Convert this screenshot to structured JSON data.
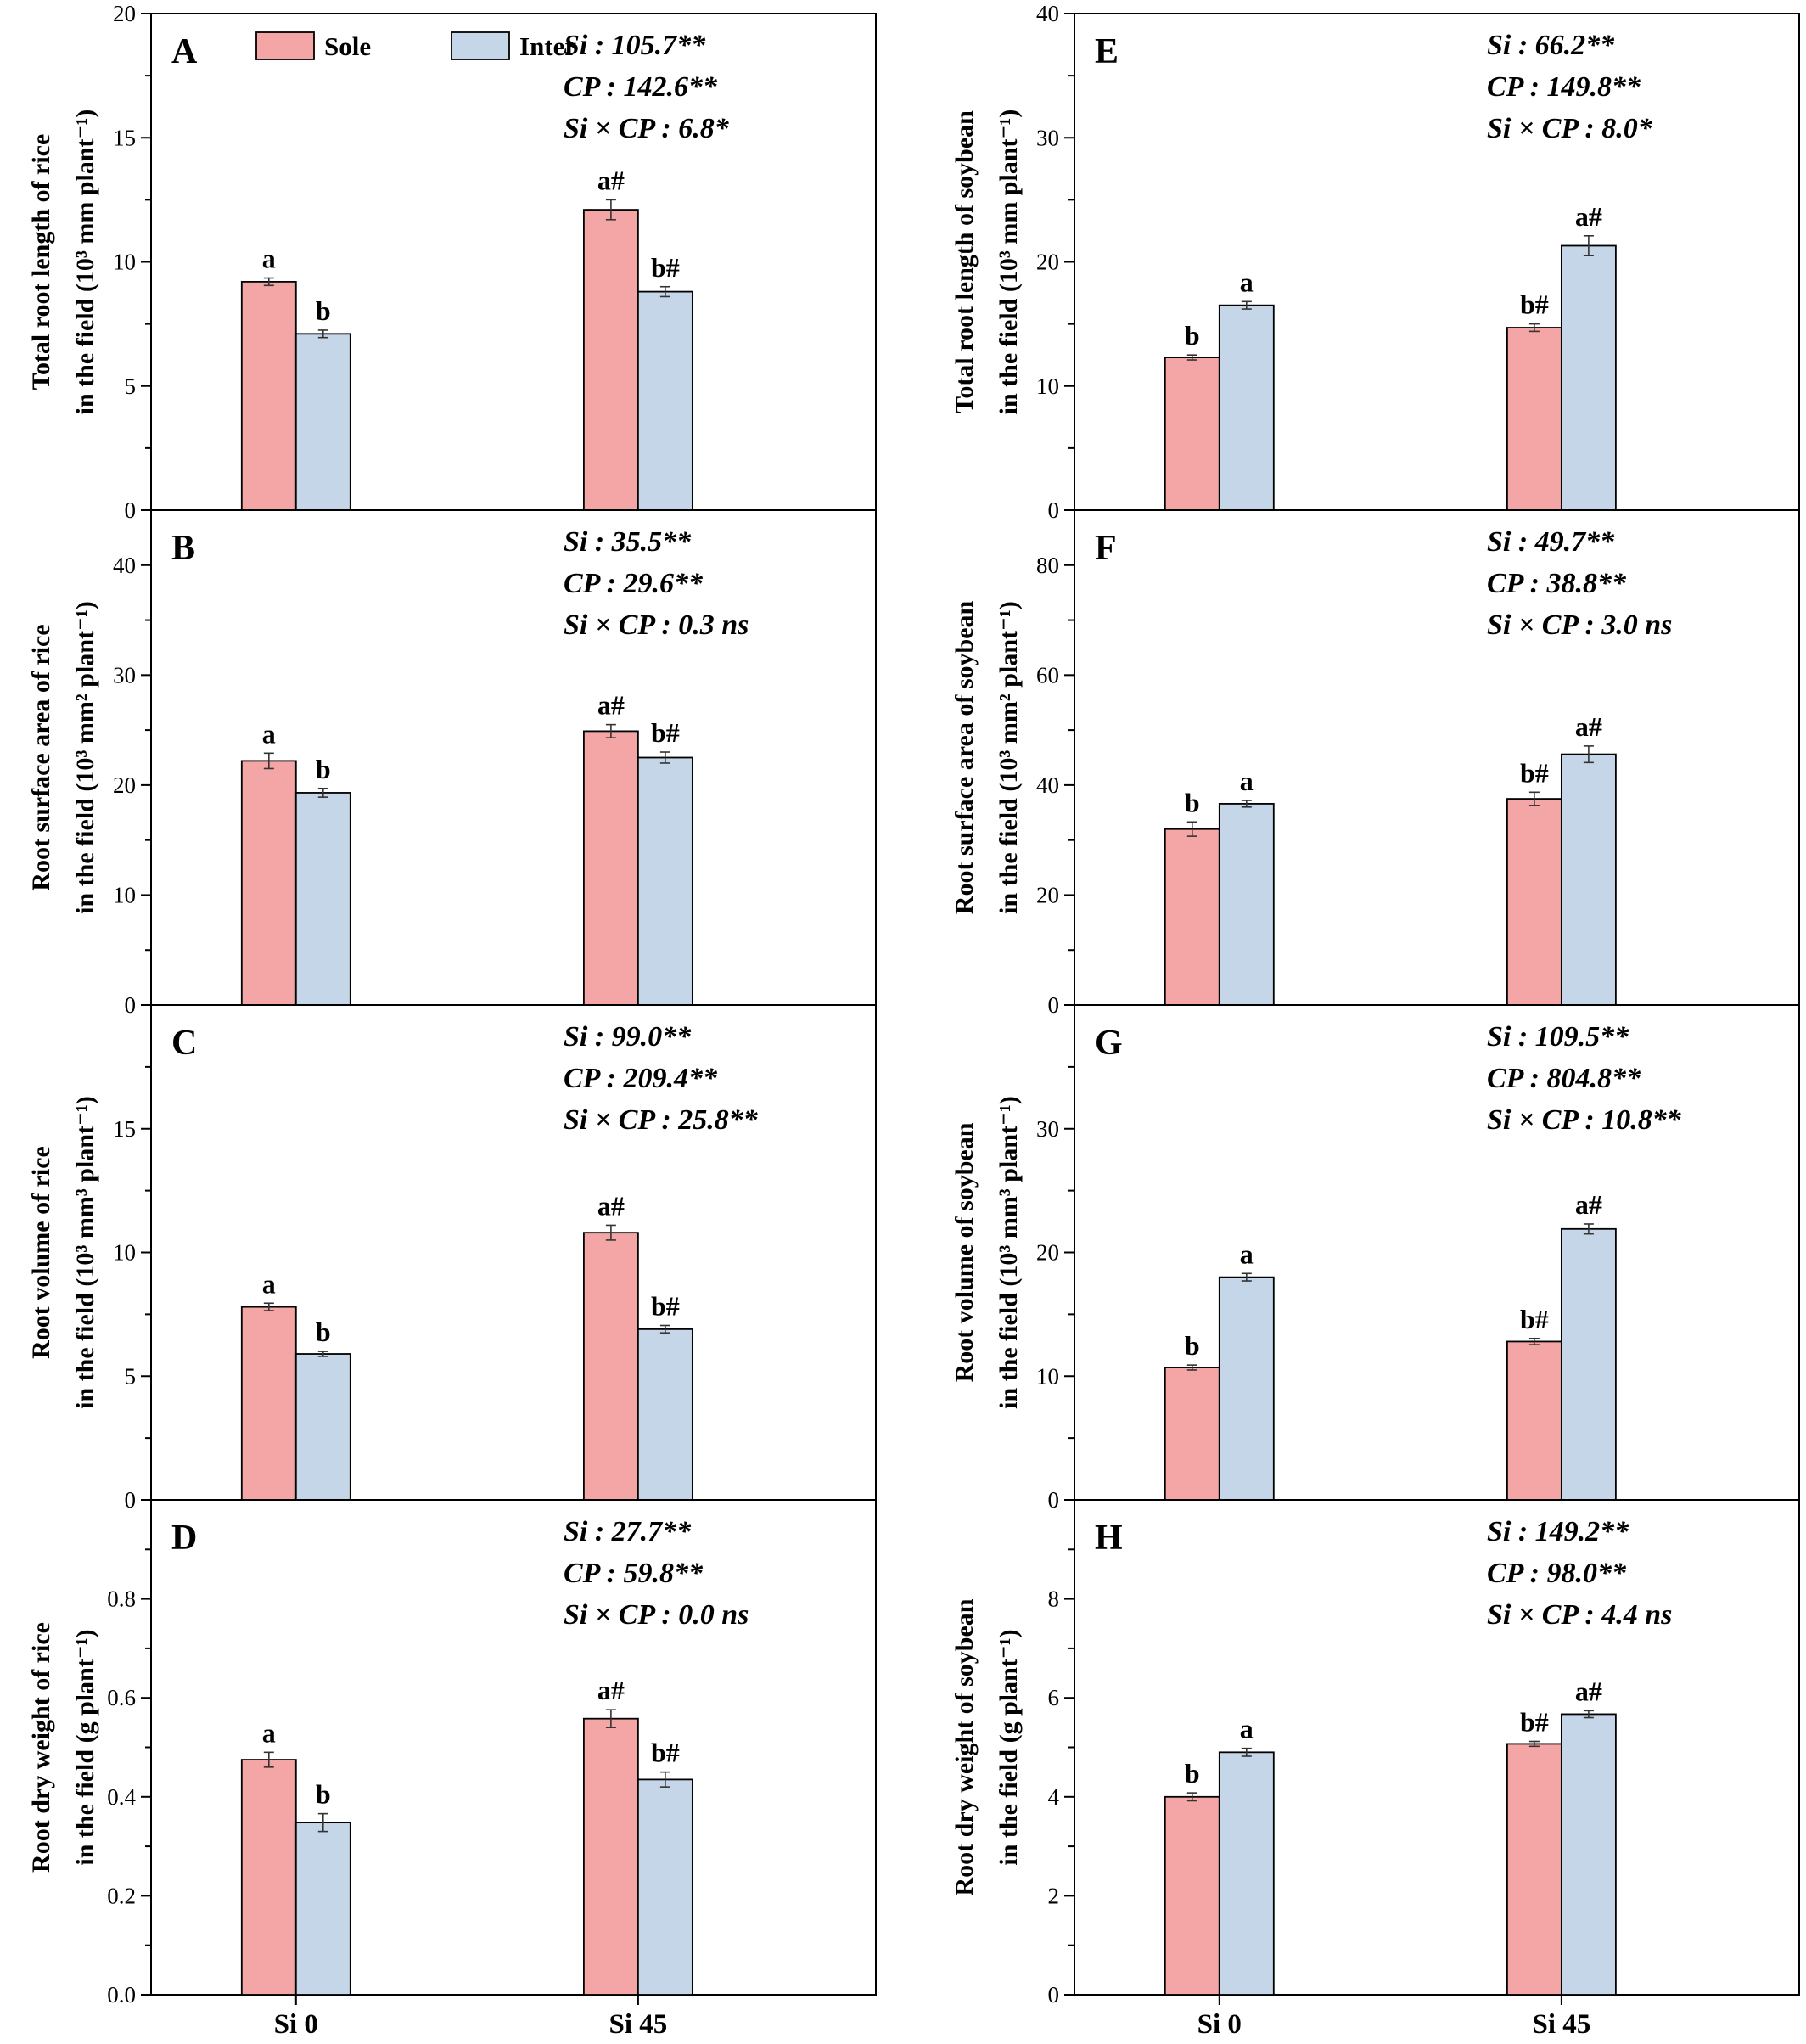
{
  "legend": [
    {
      "name": "Sole",
      "color": "#f4a6a6"
    },
    {
      "name": "Inter",
      "color": "#c5d6e8"
    }
  ],
  "categories": [
    "Si 0",
    "Si 45"
  ],
  "chart_data": [
    {
      "type": "bar",
      "panel": "A",
      "ylabel_lines": [
        "Total root length of rice",
        "in the field (10³ mm plant⁻¹)"
      ],
      "ylim": [
        0,
        20
      ],
      "yticks": [
        0,
        5,
        10,
        15,
        20
      ],
      "categories": [
        "Si 0",
        "Si 45"
      ],
      "series": [
        {
          "name": "Sole",
          "values": [
            9.2,
            12.1
          ],
          "errors": [
            0.15,
            0.4
          ],
          "letters": [
            "a",
            "a#"
          ]
        },
        {
          "name": "Inter",
          "values": [
            7.1,
            8.8
          ],
          "errors": [
            0.15,
            0.2
          ],
          "letters": [
            "b",
            "b#"
          ]
        }
      ],
      "stats": [
        "Si : 105.7**",
        "CP : 142.6**",
        "Si × CP : 6.8*"
      ]
    },
    {
      "type": "bar",
      "panel": "B",
      "ylabel_lines": [
        "Root surface area of rice",
        "in the field (10³ mm² plant⁻¹)"
      ],
      "ylim": [
        0,
        45
      ],
      "yticks": [
        0,
        10,
        20,
        30,
        40
      ],
      "categories": [
        "Si 0",
        "Si 45"
      ],
      "series": [
        {
          "name": "Sole",
          "values": [
            22.2,
            24.9
          ],
          "errors": [
            0.7,
            0.6
          ],
          "letters": [
            "a",
            "a#"
          ]
        },
        {
          "name": "Inter",
          "values": [
            19.3,
            22.5
          ],
          "errors": [
            0.4,
            0.5
          ],
          "letters": [
            "b",
            "b#"
          ]
        }
      ],
      "stats": [
        "Si : 35.5**",
        "CP : 29.6**",
        "Si × CP : 0.3 ns"
      ]
    },
    {
      "type": "bar",
      "panel": "C",
      "ylabel_lines": [
        "Root volume of rice",
        "in the field (10³ mm³ plant⁻¹)"
      ],
      "ylim": [
        0,
        20
      ],
      "yticks": [
        0,
        5,
        10,
        15
      ],
      "categories": [
        "Si 0",
        "Si 45"
      ],
      "series": [
        {
          "name": "Sole",
          "values": [
            7.8,
            10.8
          ],
          "errors": [
            0.15,
            0.3
          ],
          "letters": [
            "a",
            "a#"
          ]
        },
        {
          "name": "Inter",
          "values": [
            5.9,
            6.9
          ],
          "errors": [
            0.1,
            0.15
          ],
          "letters": [
            "b",
            "b#"
          ]
        }
      ],
      "stats": [
        "Si : 99.0**",
        "CP : 209.4**",
        "Si × CP : 25.8**"
      ]
    },
    {
      "type": "bar",
      "panel": "D",
      "ylabel_lines": [
        "Root dry weight of rice",
        "in the field (g plant⁻¹)"
      ],
      "ylim": [
        0,
        1.0
      ],
      "yticks": [
        0.0,
        0.2,
        0.4,
        0.6,
        0.8
      ],
      "categories": [
        "Si 0",
        "Si 45"
      ],
      "series": [
        {
          "name": "Sole",
          "values": [
            0.475,
            0.558
          ],
          "errors": [
            0.015,
            0.018
          ],
          "letters": [
            "a",
            "a#"
          ]
        },
        {
          "name": "Inter",
          "values": [
            0.348,
            0.435
          ],
          "errors": [
            0.018,
            0.015
          ],
          "letters": [
            "b",
            "b#"
          ]
        }
      ],
      "stats": [
        "Si : 27.7**",
        "CP : 59.8**",
        "Si × CP : 0.0 ns"
      ]
    },
    {
      "type": "bar",
      "panel": "E",
      "ylabel_lines": [
        "Total root length of soybean",
        "in the field (10³ mm plant⁻¹)"
      ],
      "ylim": [
        0,
        40
      ],
      "yticks": [
        0,
        10,
        20,
        30,
        40
      ],
      "categories": [
        "Si 0",
        "Si 45"
      ],
      "series": [
        {
          "name": "Sole",
          "values": [
            12.3,
            14.7
          ],
          "errors": [
            0.2,
            0.3
          ],
          "letters": [
            "b",
            "b#"
          ]
        },
        {
          "name": "Inter",
          "values": [
            16.5,
            21.3
          ],
          "errors": [
            0.3,
            0.8
          ],
          "letters": [
            "a",
            "a#"
          ]
        }
      ],
      "stats": [
        "Si : 66.2**",
        "CP : 149.8**",
        "Si × CP : 8.0*"
      ]
    },
    {
      "type": "bar",
      "panel": "F",
      "ylabel_lines": [
        "Root surface area of soybean",
        "in the field (10³ mm² plant⁻¹)"
      ],
      "ylim": [
        0,
        90
      ],
      "yticks": [
        0,
        20,
        40,
        60,
        80
      ],
      "categories": [
        "Si 0",
        "Si 45"
      ],
      "series": [
        {
          "name": "Sole",
          "values": [
            32.0,
            37.5
          ],
          "errors": [
            1.3,
            1.2
          ],
          "letters": [
            "b",
            "b#"
          ]
        },
        {
          "name": "Inter",
          "values": [
            36.6,
            45.6
          ],
          "errors": [
            0.6,
            1.5
          ],
          "letters": [
            "a",
            "a#"
          ]
        }
      ],
      "stats": [
        "Si : 49.7**",
        "CP : 38.8**",
        "Si × CP : 3.0 ns"
      ]
    },
    {
      "type": "bar",
      "panel": "G",
      "ylabel_lines": [
        "Root volume of soybean",
        "in the field (10³ mm³ plant⁻¹)"
      ],
      "ylim": [
        0,
        40
      ],
      "yticks": [
        0,
        10,
        20,
        30
      ],
      "categories": [
        "Si 0",
        "Si 45"
      ],
      "series": [
        {
          "name": "Sole",
          "values": [
            10.7,
            12.8
          ],
          "errors": [
            0.2,
            0.25
          ],
          "letters": [
            "b",
            "b#"
          ]
        },
        {
          "name": "Inter",
          "values": [
            18.0,
            21.9
          ],
          "errors": [
            0.3,
            0.4
          ],
          "letters": [
            "a",
            "a#"
          ]
        }
      ],
      "stats": [
        "Si : 109.5**",
        "CP : 804.8**",
        "Si × CP : 10.8**"
      ]
    },
    {
      "type": "bar",
      "panel": "H",
      "ylabel_lines": [
        "Root dry weight of soybean",
        "in the field (g plant⁻¹)"
      ],
      "ylim": [
        0,
        10
      ],
      "yticks": [
        0,
        2,
        4,
        6,
        8
      ],
      "categories": [
        "Si 0",
        "Si 45"
      ],
      "series": [
        {
          "name": "Sole",
          "values": [
            4.0,
            5.07
          ],
          "errors": [
            0.08,
            0.05
          ],
          "letters": [
            "b",
            "b#"
          ]
        },
        {
          "name": "Inter",
          "values": [
            4.9,
            5.67
          ],
          "errors": [
            0.08,
            0.07
          ],
          "letters": [
            "a",
            "a#"
          ]
        }
      ],
      "stats": [
        "Si : 149.2**",
        "CP : 98.0**",
        "Si × CP : 4.4 ns"
      ]
    }
  ]
}
